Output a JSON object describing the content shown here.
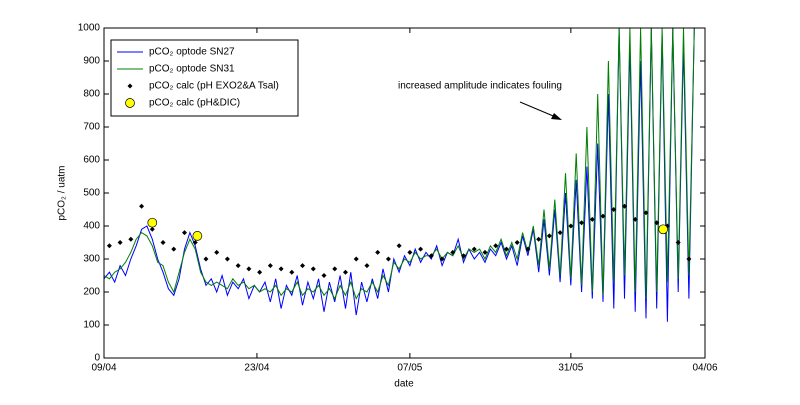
{
  "chart_data": {
    "type": "line",
    "xlabel": "date",
    "ylabel": "pCO₂ / uatm",
    "annotation": "increased amplitude indicates fouling",
    "xlim": [
      0,
      56
    ],
    "xticks": [
      {
        "value": 0,
        "label": "09/04"
      },
      {
        "value": 14.25,
        "label": "23/04"
      },
      {
        "value": 28.5,
        "label": "07/05"
      },
      {
        "value": 43.5,
        "label": "31/05"
      },
      {
        "value": 56,
        "label": "04/06"
      }
    ],
    "ylim": [
      0,
      1000
    ],
    "yticks": [
      0,
      100,
      200,
      300,
      400,
      500,
      600,
      700,
      800,
      900,
      1000
    ],
    "legend": "upper left",
    "x": [
      0,
      0.5,
      1,
      1.5,
      2,
      2.5,
      3,
      3.5,
      4,
      4.5,
      5,
      5.5,
      6,
      6.5,
      7,
      7.5,
      8,
      8.5,
      9,
      9.5,
      10,
      10.5,
      11,
      11.5,
      12,
      12.5,
      13,
      13.5,
      14,
      14.5,
      15,
      15.5,
      16,
      16.5,
      17,
      17.5,
      18,
      18.5,
      19,
      19.5,
      20,
      20.5,
      21,
      21.5,
      22,
      22.5,
      23,
      23.5,
      24,
      24.5,
      25,
      25.5,
      26,
      26.5,
      27,
      27.5,
      28,
      28.5,
      29,
      29.5,
      30,
      30.5,
      31,
      31.5,
      32,
      32.5,
      33,
      33.5,
      34,
      34.5,
      35,
      35.5,
      36,
      36.5,
      37,
      37.5,
      38,
      38.5,
      39,
      39.5,
      40,
      40.5,
      41,
      41.5,
      42,
      42.5,
      43,
      43.5,
      44,
      44.5,
      45,
      45.5,
      46,
      46.5,
      47,
      47.5,
      48,
      48.5,
      49,
      49.5,
      50,
      50.5,
      51,
      51.5,
      52,
      52.5,
      53,
      53.5,
      54,
      54.5,
      55
    ],
    "series": [
      {
        "name": "pCO₂ optode SN27",
        "type": "line",
        "color": "#0000ff",
        "values": [
          240,
          260,
          230,
          280,
          250,
          300,
          340,
          390,
          400,
          360,
          300,
          260,
          210,
          190,
          240,
          330,
          380,
          340,
          270,
          220,
          240,
          200,
          250,
          190,
          230,
          210,
          240,
          180,
          220,
          200,
          230,
          170,
          240,
          150,
          220,
          190,
          250,
          160,
          230,
          180,
          240,
          140,
          230,
          170,
          250,
          150,
          260,
          130,
          230,
          170,
          240,
          180,
          270,
          200,
          300,
          260,
          310,
          280,
          330,
          290,
          320,
          300,
          340,
          280,
          320,
          310,
          360,
          290,
          330,
          300,
          320,
          290,
          330,
          310,
          350,
          300,
          340,
          280,
          370,
          310,
          390,
          260,
          420,
          250,
          450,
          230,
          500,
          220,
          540,
          200,
          580,
          180,
          650,
          170,
          800,
          150,
          1000,
          180,
          950,
          140,
          900,
          120,
          1000,
          150,
          980,
          110,
          1000,
          200,
          950,
          180,
          1000
        ]
      },
      {
        "name": "pCO₂ optode SN31",
        "type": "line",
        "color": "#008000",
        "values": [
          250,
          240,
          260,
          270,
          290,
          320,
          360,
          380,
          370,
          340,
          290,
          280,
          230,
          200,
          260,
          320,
          360,
          330,
          260,
          230,
          220,
          230,
          220,
          210,
          240,
          220,
          230,
          210,
          220,
          200,
          210,
          200,
          220,
          190,
          210,
          200,
          230,
          190,
          210,
          200,
          220,
          190,
          210,
          180,
          220,
          190,
          230,
          180,
          210,
          200,
          230,
          200,
          250,
          220,
          290,
          270,
          300,
          290,
          320,
          300,
          310,
          310,
          330,
          300,
          320,
          310,
          340,
          300,
          330,
          320,
          330,
          300,
          340,
          320,
          360,
          310,
          350,
          300,
          380,
          320,
          400,
          280,
          450,
          270,
          480,
          250,
          560,
          240,
          620,
          220,
          700,
          200,
          800,
          190,
          900,
          230,
          1000,
          250,
          1000,
          200,
          1000,
          180,
          1000,
          200,
          1000,
          230,
          1000,
          240,
          1000,
          250,
          1000
        ]
      },
      {
        "name": "pCO₂ calc (pH EXO2&A Tsal)",
        "type": "scatter",
        "marker": "diamond",
        "color": "#000000",
        "x": [
          0.5,
          1.5,
          2.5,
          3.5,
          4.5,
          5.5,
          6.5,
          7.5,
          8.5,
          9.5,
          10.5,
          11.5,
          12.5,
          13.5,
          14.5,
          15.5,
          16.5,
          17.5,
          18.5,
          19.5,
          20.5,
          21.5,
          22.5,
          23.5,
          24.5,
          25.5,
          26.5,
          27.5,
          28.5,
          29.5,
          30.5,
          31.5,
          32.5,
          33.5,
          34.5,
          35.5,
          36.5,
          37.5,
          38.5,
          39.5,
          40.5,
          41.5,
          42.5,
          43.5,
          44.5,
          45.5,
          46.5,
          47.5,
          48.5,
          49.5,
          50.5,
          51.5,
          52.5,
          53.5,
          54.5
        ],
        "values": [
          340,
          350,
          360,
          460,
          390,
          350,
          330,
          380,
          350,
          300,
          320,
          300,
          280,
          270,
          260,
          280,
          270,
          260,
          280,
          270,
          250,
          270,
          260,
          300,
          280,
          320,
          300,
          340,
          320,
          330,
          310,
          300,
          320,
          310,
          330,
          320,
          340,
          330,
          350,
          330,
          360,
          370,
          380,
          400,
          410,
          420,
          430,
          450,
          460,
          420,
          440,
          410,
          400,
          350,
          300
        ]
      },
      {
        "name": "pCO₂ calc (pH&DIC)",
        "type": "scatter",
        "marker": "circle",
        "color": "#ffff00",
        "x": [
          4.5,
          8.7,
          52.1
        ],
        "values": [
          410,
          370,
          390
        ]
      }
    ]
  }
}
